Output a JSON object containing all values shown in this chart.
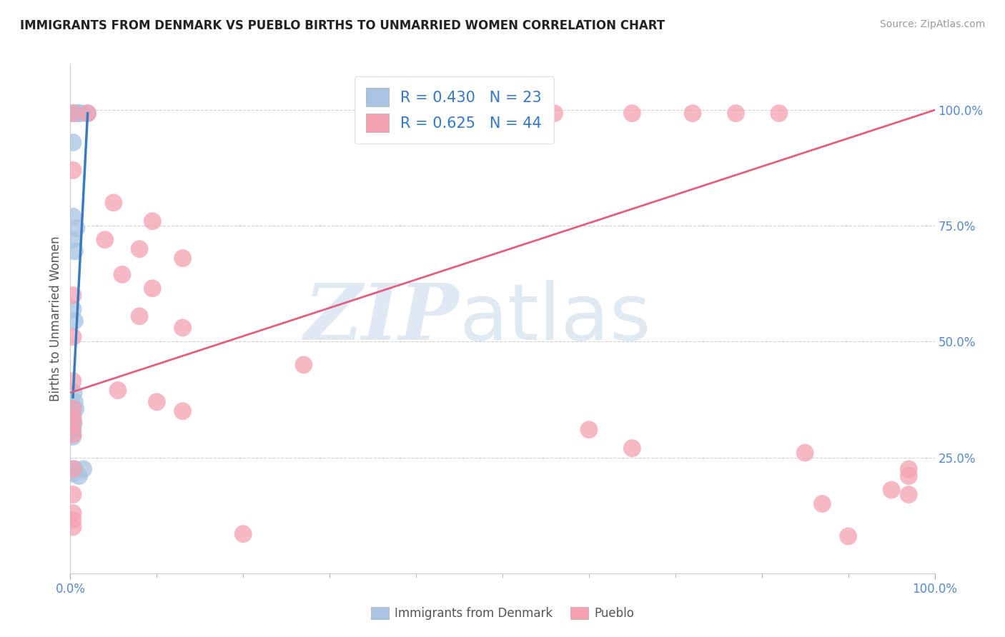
{
  "title": "IMMIGRANTS FROM DENMARK VS PUEBLO BIRTHS TO UNMARRIED WOMEN CORRELATION CHART",
  "source": "Source: ZipAtlas.com",
  "ylabel": "Births to Unmarried Women",
  "x_tick_labels": [
    "0.0%",
    "100.0%"
  ],
  "y_tick_labels": [
    "25.0%",
    "50.0%",
    "75.0%",
    "100.0%"
  ],
  "y_tick_positions": [
    0.25,
    0.5,
    0.75,
    1.0
  ],
  "legend_label1": "Immigrants from Denmark",
  "legend_label2": "Pueblo",
  "blue_r_text": "R = 0.430",
  "blue_n_text": "N = 23",
  "pink_r_text": "R = 0.625",
  "pink_n_text": "N = 44",
  "blue_color": "#a8c4e0",
  "pink_color": "#f4a0b0",
  "blue_line_color": "#3a7abf",
  "pink_line_color": "#e06080",
  "watermark_zip": "ZIP",
  "watermark_atlas": "atlas",
  "background_color": "#ffffff",
  "title_color": "#222222",
  "source_color": "#999999",
  "blue_dots": [
    [
      0.003,
      0.993
    ],
    [
      0.006,
      0.993
    ],
    [
      0.009,
      0.993
    ],
    [
      0.012,
      0.993
    ],
    [
      0.02,
      0.993
    ],
    [
      0.003,
      0.93
    ],
    [
      0.003,
      0.77
    ],
    [
      0.007,
      0.745
    ],
    [
      0.003,
      0.72
    ],
    [
      0.005,
      0.695
    ],
    [
      0.003,
      0.57
    ],
    [
      0.005,
      0.545
    ],
    [
      0.004,
      0.39
    ],
    [
      0.005,
      0.37
    ],
    [
      0.006,
      0.355
    ],
    [
      0.003,
      0.34
    ],
    [
      0.004,
      0.325
    ],
    [
      0.003,
      0.31
    ],
    [
      0.003,
      0.295
    ],
    [
      0.003,
      0.215
    ],
    [
      0.01,
      0.21
    ],
    [
      0.005,
      0.225
    ],
    [
      0.015,
      0.225
    ]
  ],
  "pink_dots": [
    [
      0.003,
      0.993
    ],
    [
      0.02,
      0.993
    ],
    [
      0.48,
      0.993
    ],
    [
      0.56,
      0.993
    ],
    [
      0.65,
      0.993
    ],
    [
      0.72,
      0.993
    ],
    [
      0.77,
      0.993
    ],
    [
      0.82,
      0.993
    ],
    [
      0.003,
      0.87
    ],
    [
      0.05,
      0.8
    ],
    [
      0.095,
      0.76
    ],
    [
      0.04,
      0.72
    ],
    [
      0.08,
      0.7
    ],
    [
      0.13,
      0.68
    ],
    [
      0.06,
      0.645
    ],
    [
      0.095,
      0.615
    ],
    [
      0.003,
      0.6
    ],
    [
      0.08,
      0.555
    ],
    [
      0.13,
      0.53
    ],
    [
      0.003,
      0.51
    ],
    [
      0.27,
      0.45
    ],
    [
      0.003,
      0.415
    ],
    [
      0.055,
      0.395
    ],
    [
      0.1,
      0.37
    ],
    [
      0.13,
      0.35
    ],
    [
      0.003,
      0.355
    ],
    [
      0.003,
      0.335
    ],
    [
      0.003,
      0.32
    ],
    [
      0.6,
      0.31
    ],
    [
      0.003,
      0.3
    ],
    [
      0.65,
      0.27
    ],
    [
      0.85,
      0.26
    ],
    [
      0.003,
      0.225
    ],
    [
      0.003,
      0.17
    ],
    [
      0.003,
      0.13
    ],
    [
      0.003,
      0.115
    ],
    [
      0.003,
      0.1
    ],
    [
      0.2,
      0.085
    ],
    [
      0.9,
      0.08
    ],
    [
      0.95,
      0.18
    ],
    [
      0.87,
      0.15
    ],
    [
      0.97,
      0.225
    ],
    [
      0.97,
      0.17
    ],
    [
      0.97,
      0.21
    ]
  ],
  "blue_line": {
    "x0": 0.02,
    "y0": 0.993,
    "x1": 0.003,
    "y1": 0.38
  },
  "pink_line": {
    "x0": 0.0,
    "y0": 0.39,
    "x1": 1.0,
    "y1": 1.0
  },
  "xlim": [
    0.0,
    1.0
  ],
  "ylim": [
    0.0,
    1.1
  ]
}
